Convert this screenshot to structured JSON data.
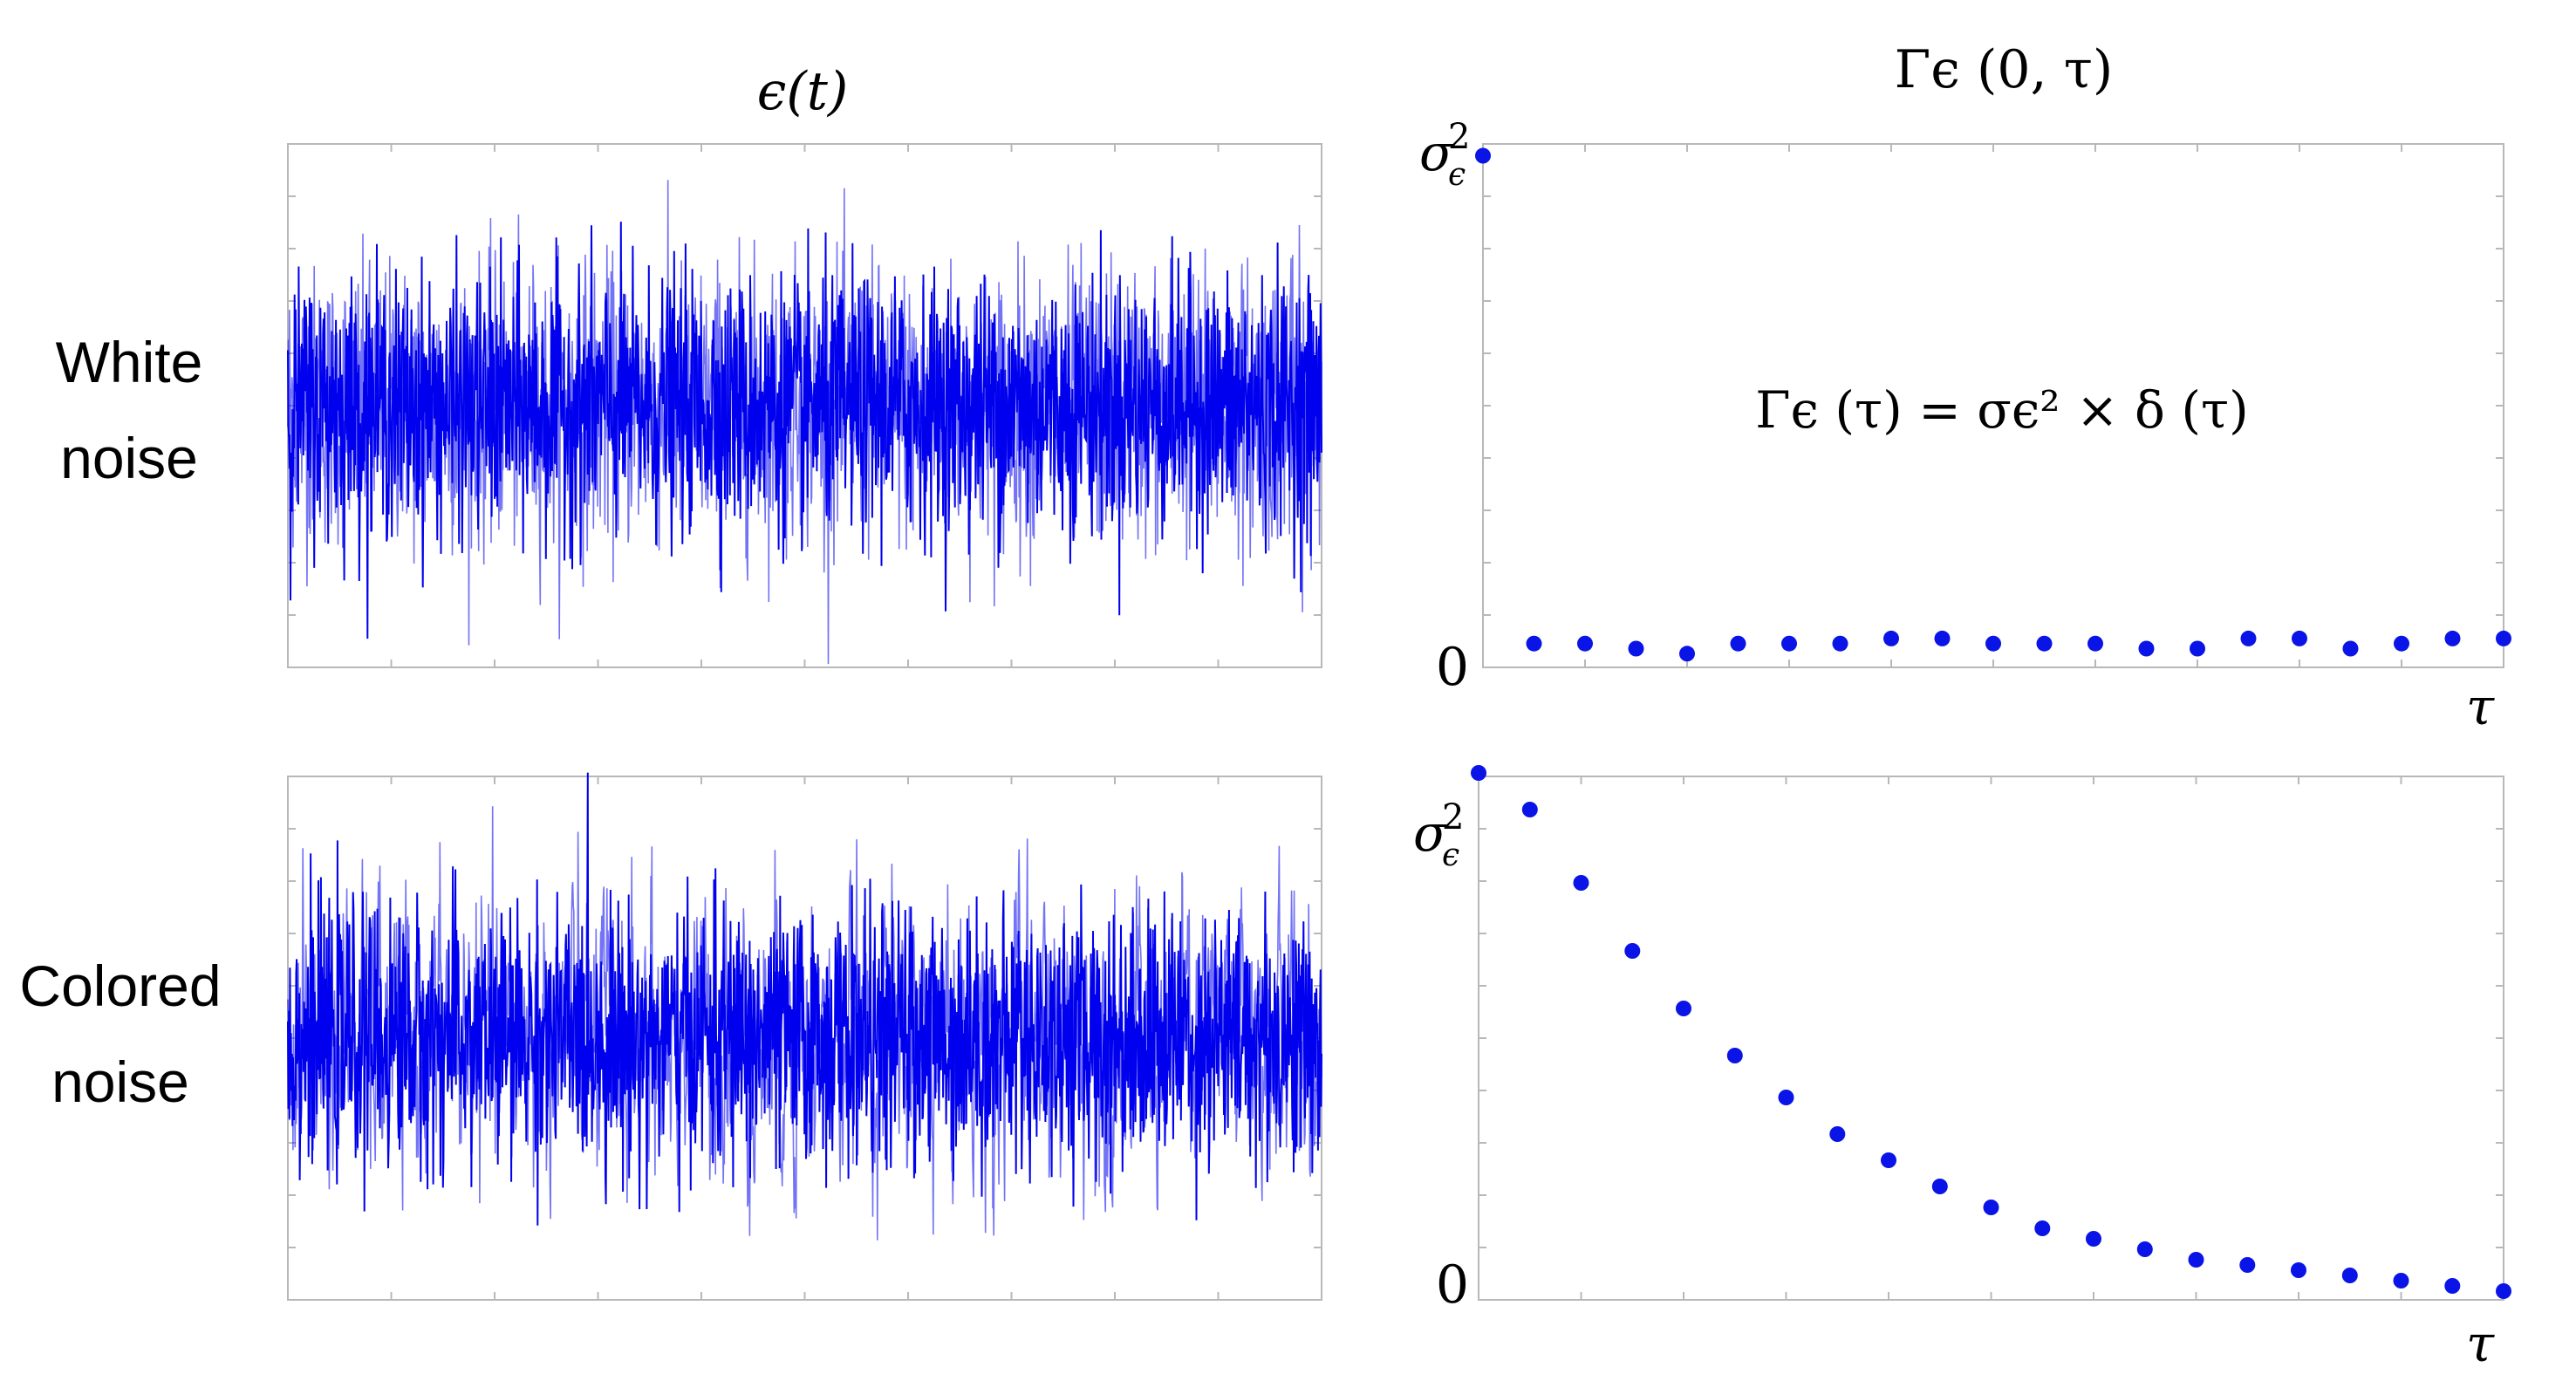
{
  "headers": {
    "left": "ϵ(t)",
    "right": "Γϵ (0, τ)"
  },
  "rows": [
    {
      "line1": "White",
      "line2": "noise"
    },
    {
      "line1": "Colored",
      "line2": "noise"
    }
  ],
  "formula": "Γϵ (τ) = σϵ² × δ (τ)",
  "axis": {
    "sigma_label": "σ",
    "sigma_sup": "2",
    "sigma_sub": "ϵ",
    "zero_label": "0",
    "tau_label": "τ"
  },
  "colors": {
    "signal": "#0000ee",
    "dots": "#0a14e6",
    "frame": "#b8b8b8"
  },
  "chart_data": [
    {
      "type": "line",
      "panel": "white-noise-signal",
      "description_of_values": "dense random time series",
      "series": [
        {
          "points": 2000,
          "ylim": [
            -3.8,
            3.8
          ]
        }
      ],
      "noise": "white"
    },
    {
      "type": "scatter",
      "panel": "white-noise-autocorrelation",
      "x": [
        0,
        1,
        2,
        3,
        4,
        5,
        6,
        7,
        8,
        9,
        10,
        11,
        12,
        13,
        14,
        15,
        16,
        17,
        18,
        19,
        20
      ],
      "values": [
        1.0,
        0.04,
        0.04,
        0.03,
        0.02,
        0.04,
        0.04,
        0.04,
        0.05,
        0.05,
        0.04,
        0.04,
        0.04,
        0.03,
        0.03,
        0.05,
        0.05,
        0.03,
        0.04,
        0.05,
        0.05
      ],
      "ylim": [
        0,
        1.03
      ],
      "xlim": [
        0,
        20
      ]
    },
    {
      "type": "line",
      "panel": "colored-noise-signal",
      "series": [
        {
          "points": 2000,
          "ylim": [
            -3.8,
            3.8
          ]
        }
      ],
      "noise": "colored"
    },
    {
      "type": "scatter",
      "panel": "colored-noise-autocorrelation",
      "x": [
        0,
        1,
        2,
        3,
        4,
        5,
        6,
        7,
        8,
        9,
        10,
        11,
        12,
        13,
        14,
        15,
        16,
        17,
        18,
        19,
        20
      ],
      "values": [
        1.0,
        0.93,
        0.79,
        0.66,
        0.55,
        0.46,
        0.38,
        0.31,
        0.26,
        0.21,
        0.17,
        0.13,
        0.11,
        0.09,
        0.07,
        0.06,
        0.05,
        0.04,
        0.03,
        0.02,
        0.01
      ],
      "ylim": [
        0,
        1.0
      ],
      "xlim": [
        0,
        20
      ]
    }
  ]
}
